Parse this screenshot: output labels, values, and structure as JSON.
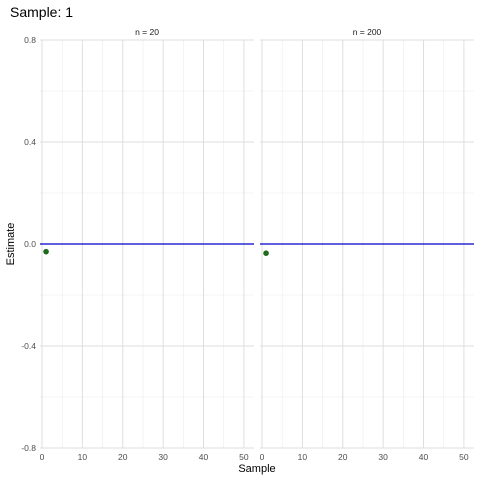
{
  "chart_data": {
    "type": "scatter",
    "title": "Sample: 1",
    "xlabel": "Sample",
    "ylabel": "Estimate",
    "xlim": [
      -0.5,
      52.5
    ],
    "ylim": [
      -0.8,
      0.8
    ],
    "x_ticks": [
      0,
      10,
      20,
      30,
      40,
      50
    ],
    "y_ticks": [
      -0.8,
      -0.4,
      0.0,
      0.4,
      0.8
    ],
    "y_tick_labels": [
      "-0.8",
      "-0.4",
      "0.0",
      "0.4",
      "0.8"
    ],
    "grid": true,
    "reference_line": {
      "y": 0.0,
      "color": "#0000cc"
    },
    "point_color": "#1e6b1e",
    "panels": [
      {
        "strip": "n = 20",
        "points": [
          {
            "x": 1,
            "y": -0.03
          }
        ]
      },
      {
        "strip": "n = 200",
        "points": [
          {
            "x": 1,
            "y": -0.036
          }
        ]
      }
    ]
  }
}
